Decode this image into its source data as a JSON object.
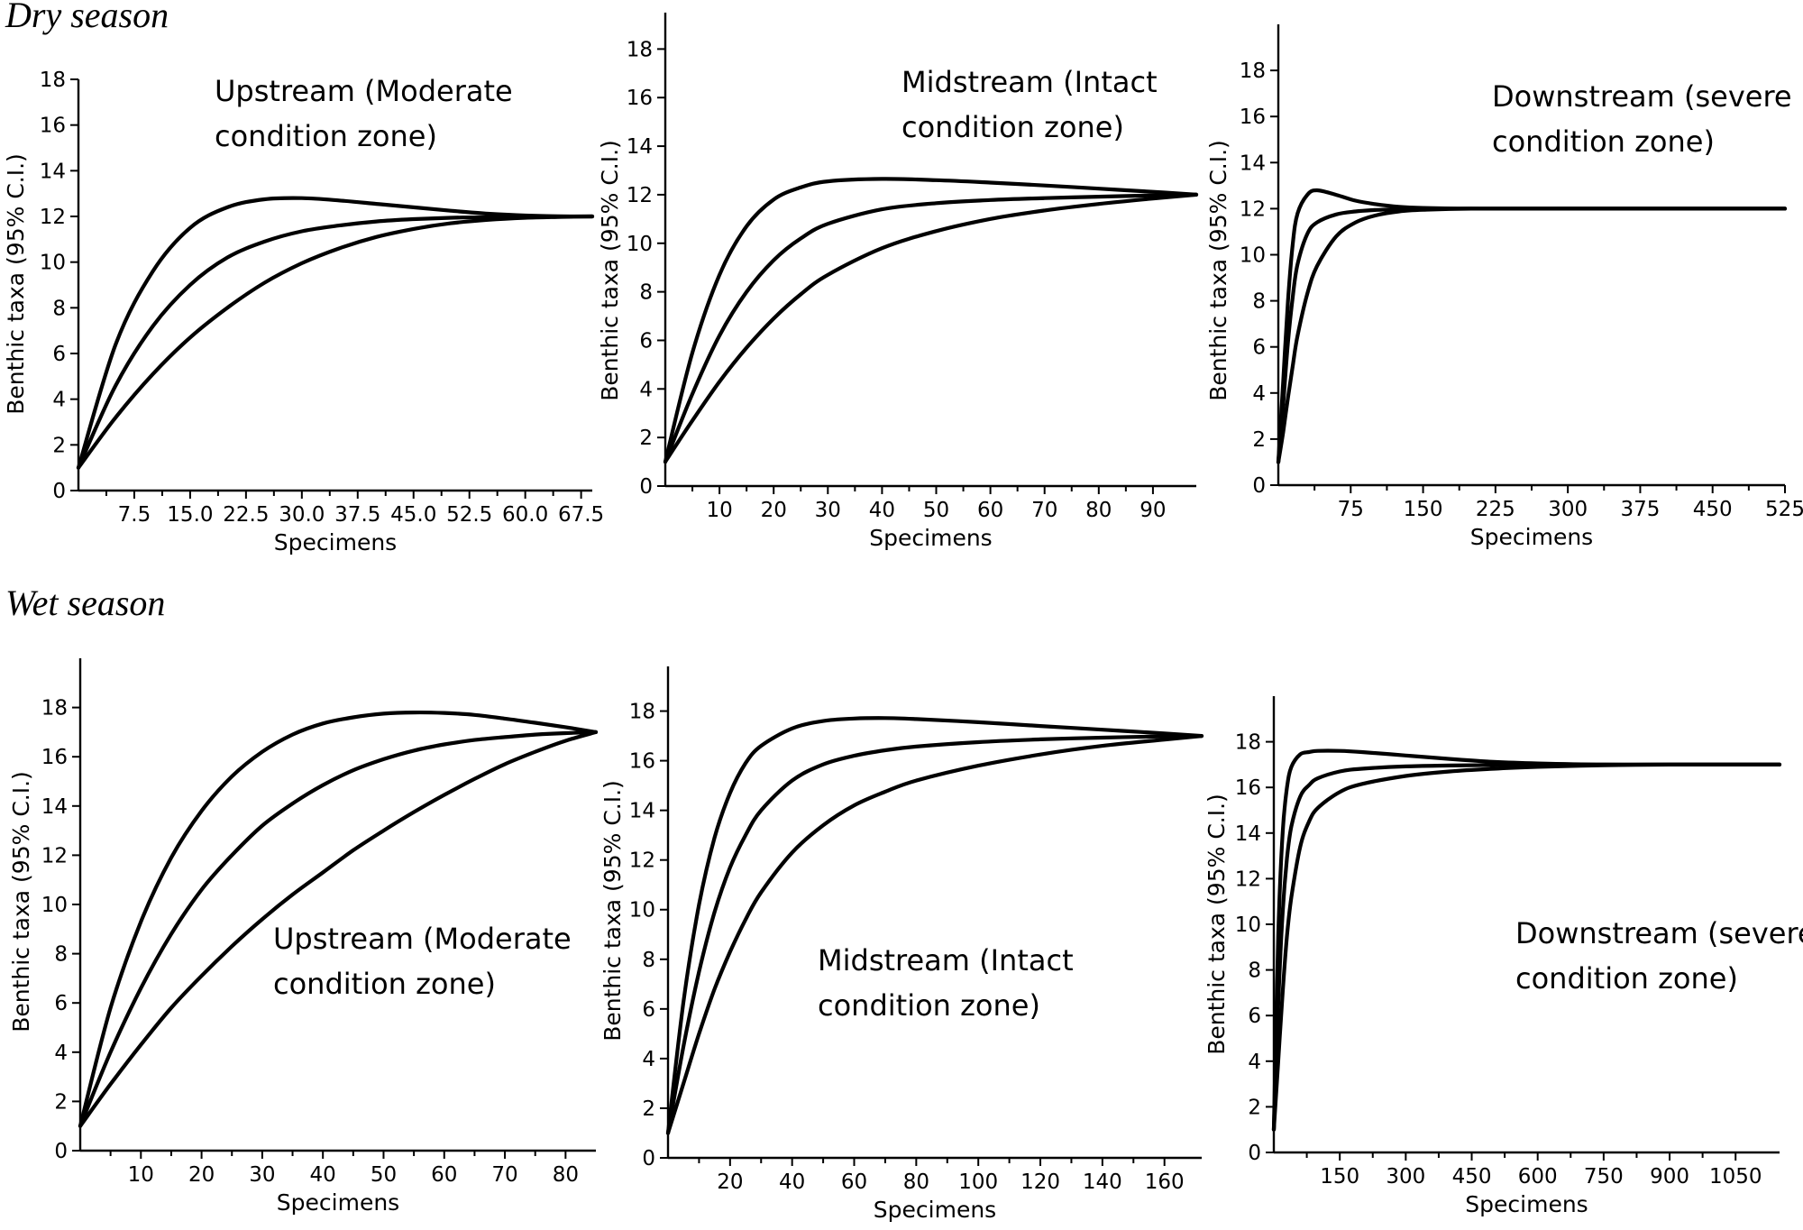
{
  "seasons": [
    {
      "label": "Dry season"
    },
    {
      "label": "Wet season"
    }
  ],
  "chart_data": [
    {
      "type": "line",
      "season": "Dry season",
      "title": [
        "Upstream (Moderate",
        "condition zone)"
      ],
      "xlabel": "Specimens",
      "ylabel": "Benthic taxa (95% C.I.)",
      "xlim": [
        0,
        69
      ],
      "ylim": [
        0,
        18
      ],
      "xticks": [
        7.5,
        15,
        22.5,
        30,
        37.5,
        45,
        52.5,
        60,
        67.5
      ],
      "xtick_labels": [
        "7.5",
        "15.0",
        "22.5",
        "30.0",
        "37.5",
        "45.0",
        "52.5",
        "60.0",
        "67.5"
      ],
      "yticks": [
        0,
        2,
        4,
        6,
        8,
        10,
        12,
        14,
        16,
        18
      ],
      "ytick_labels": [
        "0",
        "2",
        "4",
        "6",
        "8",
        "10",
        "12",
        "14",
        "16",
        "18"
      ],
      "series": [
        {
          "x": [
            0,
            5,
            10,
            15,
            20,
            25,
            30,
            35,
            40,
            45,
            50,
            55,
            60,
            65,
            69
          ],
          "values": [
            1,
            6.4,
            9.6,
            11.5,
            12.4,
            12.75,
            12.8,
            12.7,
            12.55,
            12.4,
            12.25,
            12.12,
            12.04,
            12.0,
            12.0
          ]
        },
        {
          "x": [
            0,
            5,
            10,
            15,
            20,
            25,
            30,
            35,
            40,
            45,
            50,
            55,
            60,
            65,
            69
          ],
          "values": [
            1,
            4.6,
            7.2,
            9.0,
            10.2,
            10.9,
            11.35,
            11.6,
            11.78,
            11.88,
            11.94,
            11.97,
            11.99,
            12.0,
            12.0
          ]
        },
        {
          "x": [
            0,
            5,
            10,
            15,
            20,
            25,
            30,
            35,
            40,
            45,
            50,
            55,
            60,
            65,
            69
          ],
          "values": [
            1,
            3.2,
            5.1,
            6.7,
            8.0,
            9.1,
            9.95,
            10.6,
            11.1,
            11.45,
            11.7,
            11.85,
            11.94,
            11.98,
            12.0
          ]
        }
      ]
    },
    {
      "type": "line",
      "season": "Dry season",
      "title": [
        "Midstream (Intact",
        "condition zone)"
      ],
      "xlabel": "Specimens",
      "ylabel": "Benthic taxa (95% C.I.)",
      "xlim": [
        0,
        98
      ],
      "ylim": [
        0,
        19.5
      ],
      "xticks": [
        10,
        20,
        30,
        40,
        50,
        60,
        70,
        80,
        90
      ],
      "xtick_labels": [
        "10",
        "20",
        "30",
        "40",
        "50",
        "60",
        "70",
        "80",
        "90"
      ],
      "yticks": [
        0,
        2,
        4,
        6,
        8,
        10,
        12,
        14,
        16,
        18
      ],
      "ytick_labels": [
        "0",
        "2",
        "4",
        "6",
        "8",
        "10",
        "12",
        "14",
        "16",
        "18"
      ],
      "series": [
        {
          "x": [
            0,
            5,
            10,
            15,
            20,
            25,
            30,
            40,
            50,
            60,
            70,
            80,
            90,
            98
          ],
          "values": [
            1,
            5.5,
            8.7,
            10.7,
            11.8,
            12.3,
            12.55,
            12.65,
            12.6,
            12.5,
            12.38,
            12.25,
            12.12,
            12.0
          ]
        },
        {
          "x": [
            0,
            5,
            10,
            15,
            20,
            25,
            30,
            40,
            50,
            60,
            70,
            80,
            90,
            98
          ],
          "values": [
            1,
            3.8,
            6.2,
            8.0,
            9.3,
            10.2,
            10.8,
            11.4,
            11.65,
            11.78,
            11.86,
            11.92,
            11.97,
            12.0
          ]
        },
        {
          "x": [
            0,
            5,
            10,
            15,
            20,
            25,
            30,
            40,
            50,
            60,
            70,
            80,
            90,
            98
          ],
          "values": [
            1,
            2.7,
            4.3,
            5.7,
            6.9,
            7.9,
            8.7,
            9.8,
            10.5,
            11.0,
            11.35,
            11.62,
            11.84,
            12.0
          ]
        }
      ]
    },
    {
      "type": "line",
      "season": "Dry season",
      "title": [
        "Downstream (severe",
        "condition zone)"
      ],
      "xlabel": "Specimens",
      "ylabel": "Benthic taxa (95% C.I.)",
      "xlim": [
        0,
        525
      ],
      "ylim": [
        0,
        20
      ],
      "xticks": [
        75,
        150,
        225,
        300,
        375,
        450,
        525
      ],
      "xtick_labels": [
        "75",
        "150",
        "225",
        "300",
        "375",
        "450",
        "525"
      ],
      "yticks": [
        0,
        2,
        4,
        6,
        8,
        10,
        12,
        14,
        16,
        18
      ],
      "ytick_labels": [
        "0",
        "2",
        "4",
        "6",
        "8",
        "10",
        "12",
        "14",
        "16",
        "18"
      ],
      "series": [
        {
          "x": [
            0,
            5,
            10,
            15,
            20,
            30,
            40,
            60,
            80,
            100,
            125,
            150,
            200,
            300,
            525
          ],
          "values": [
            1,
            4.5,
            8.0,
            10.5,
            11.8,
            12.6,
            12.8,
            12.6,
            12.35,
            12.2,
            12.08,
            12.03,
            12.0,
            12.0,
            12.0
          ]
        },
        {
          "x": [
            0,
            5,
            10,
            15,
            20,
            30,
            40,
            60,
            80,
            100,
            125,
            150,
            200,
            300,
            525
          ],
          "values": [
            1,
            3.5,
            6.2,
            8.2,
            9.6,
            10.9,
            11.4,
            11.75,
            11.88,
            11.94,
            11.98,
            12.0,
            12.0,
            12.0,
            12.0
          ]
        },
        {
          "x": [
            0,
            5,
            10,
            15,
            20,
            30,
            40,
            60,
            80,
            100,
            125,
            150,
            200,
            300,
            525
          ],
          "values": [
            1,
            2.3,
            3.8,
            5.2,
            6.5,
            8.3,
            9.5,
            10.8,
            11.4,
            11.7,
            11.88,
            11.95,
            12.0,
            12.0,
            12.0
          ]
        }
      ]
    },
    {
      "type": "line",
      "season": "Wet season",
      "title": [
        "Upstream (Moderate",
        "condition zone)"
      ],
      "xlabel": "Specimens",
      "ylabel": "Benthic taxa (95% C.I.)",
      "xlim": [
        0,
        85
      ],
      "ylim": [
        0,
        20
      ],
      "xticks": [
        10,
        20,
        30,
        40,
        50,
        60,
        70,
        80
      ],
      "xtick_labels": [
        "10",
        "20",
        "30",
        "40",
        "50",
        "60",
        "70",
        "80"
      ],
      "yticks": [
        0,
        2,
        4,
        6,
        8,
        10,
        12,
        14,
        16,
        18
      ],
      "ytick_labels": [
        "0",
        "2",
        "4",
        "6",
        "8",
        "10",
        "12",
        "14",
        "16",
        "18"
      ],
      "series": [
        {
          "x": [
            0,
            5,
            10,
            15,
            20,
            25,
            30,
            35,
            40,
            45,
            50,
            55,
            60,
            65,
            70,
            75,
            80,
            85
          ],
          "values": [
            1,
            5.8,
            9.3,
            11.9,
            13.8,
            15.2,
            16.2,
            16.9,
            17.35,
            17.6,
            17.75,
            17.8,
            17.78,
            17.7,
            17.55,
            17.38,
            17.2,
            17.0
          ]
        },
        {
          "x": [
            0,
            5,
            10,
            15,
            20,
            25,
            30,
            35,
            40,
            45,
            50,
            55,
            60,
            65,
            70,
            75,
            80,
            85
          ],
          "values": [
            1,
            4.0,
            6.6,
            8.8,
            10.6,
            12.0,
            13.2,
            14.1,
            14.85,
            15.45,
            15.9,
            16.25,
            16.5,
            16.68,
            16.8,
            16.9,
            16.96,
            17.0
          ]
        },
        {
          "x": [
            0,
            5,
            10,
            15,
            20,
            25,
            30,
            35,
            40,
            45,
            50,
            55,
            60,
            65,
            70,
            75,
            80,
            85
          ],
          "values": [
            1,
            2.7,
            4.3,
            5.8,
            7.1,
            8.3,
            9.4,
            10.4,
            11.3,
            12.2,
            13.0,
            13.75,
            14.45,
            15.1,
            15.7,
            16.2,
            16.65,
            17.0
          ]
        }
      ]
    },
    {
      "type": "line",
      "season": "Wet season",
      "title": [
        "Midstream (Intact",
        "condition zone)"
      ],
      "xlabel": "Specimens",
      "ylabel": "Benthic taxa (95% C.I.)",
      "xlim": [
        0,
        172
      ],
      "ylim": [
        0,
        19.8
      ],
      "xticks": [
        20,
        40,
        60,
        80,
        100,
        120,
        140,
        160
      ],
      "xtick_labels": [
        "20",
        "40",
        "60",
        "80",
        "100",
        "120",
        "140",
        "160"
      ],
      "yticks": [
        0,
        2,
        4,
        6,
        8,
        10,
        12,
        14,
        16,
        18
      ],
      "ytick_labels": [
        "0",
        "2",
        "4",
        "6",
        "8",
        "10",
        "12",
        "14",
        "16",
        "18"
      ],
      "series": [
        {
          "x": [
            0,
            5,
            10,
            15,
            20,
            25,
            30,
            40,
            50,
            60,
            70,
            80,
            100,
            120,
            140,
            160,
            172
          ],
          "values": [
            1,
            6.3,
            10.2,
            12.9,
            14.7,
            15.9,
            16.6,
            17.3,
            17.6,
            17.7,
            17.72,
            17.68,
            17.55,
            17.4,
            17.25,
            17.1,
            17.0
          ]
        },
        {
          "x": [
            0,
            5,
            10,
            15,
            20,
            25,
            30,
            40,
            50,
            60,
            70,
            80,
            100,
            120,
            140,
            160,
            172
          ],
          "values": [
            1,
            4.5,
            7.5,
            9.9,
            11.7,
            13.0,
            14.0,
            15.2,
            15.85,
            16.2,
            16.42,
            16.57,
            16.75,
            16.86,
            16.93,
            16.98,
            17.0
          ]
        },
        {
          "x": [
            0,
            5,
            10,
            15,
            20,
            25,
            30,
            40,
            50,
            60,
            70,
            80,
            100,
            120,
            140,
            160,
            172
          ],
          "values": [
            1,
            3.0,
            5.0,
            6.8,
            8.3,
            9.6,
            10.7,
            12.3,
            13.4,
            14.2,
            14.75,
            15.2,
            15.8,
            16.25,
            16.6,
            16.85,
            17.0
          ]
        }
      ]
    },
    {
      "type": "line",
      "season": "Wet season",
      "title": [
        "Downstream (severe",
        "condition zone)"
      ],
      "xlabel": "Specimens",
      "ylabel": "Benthic taxa (95% C.I.)",
      "xlim": [
        0,
        1150
      ],
      "ylim": [
        0,
        20
      ],
      "xticks": [
        150,
        300,
        450,
        600,
        750,
        900,
        1050
      ],
      "xtick_labels": [
        "150",
        "300",
        "450",
        "600",
        "750",
        "900",
        "1050"
      ],
      "yticks": [
        0,
        2,
        4,
        6,
        8,
        10,
        12,
        14,
        16,
        18
      ],
      "ytick_labels": [
        "0",
        "2",
        "4",
        "6",
        "8",
        "10",
        "12",
        "14",
        "16",
        "18"
      ],
      "series": [
        {
          "x": [
            0,
            10,
            20,
            30,
            40,
            60,
            80,
            100,
            150,
            200,
            300,
            400,
            500,
            600,
            750,
            900,
            1150
          ],
          "values": [
            1,
            9.5,
            14.0,
            16.0,
            16.9,
            17.45,
            17.55,
            17.6,
            17.6,
            17.55,
            17.4,
            17.25,
            17.12,
            17.05,
            17.0,
            17.0,
            17.0
          ]
        },
        {
          "x": [
            0,
            10,
            20,
            30,
            40,
            60,
            80,
            100,
            150,
            200,
            300,
            400,
            500,
            600,
            750,
            900,
            1150
          ],
          "values": [
            1,
            6.5,
            10.5,
            12.9,
            14.3,
            15.6,
            16.1,
            16.4,
            16.7,
            16.82,
            16.92,
            16.96,
            16.98,
            17.0,
            17.0,
            17.0,
            17.0
          ]
        },
        {
          "x": [
            0,
            10,
            20,
            30,
            40,
            60,
            80,
            100,
            150,
            200,
            300,
            400,
            500,
            600,
            750,
            900,
            1150
          ],
          "values": [
            1,
            4.0,
            7.0,
            9.5,
            11.2,
            13.4,
            14.5,
            15.1,
            15.8,
            16.15,
            16.5,
            16.7,
            16.82,
            16.9,
            16.97,
            17.0,
            17.0
          ]
        }
      ]
    }
  ]
}
